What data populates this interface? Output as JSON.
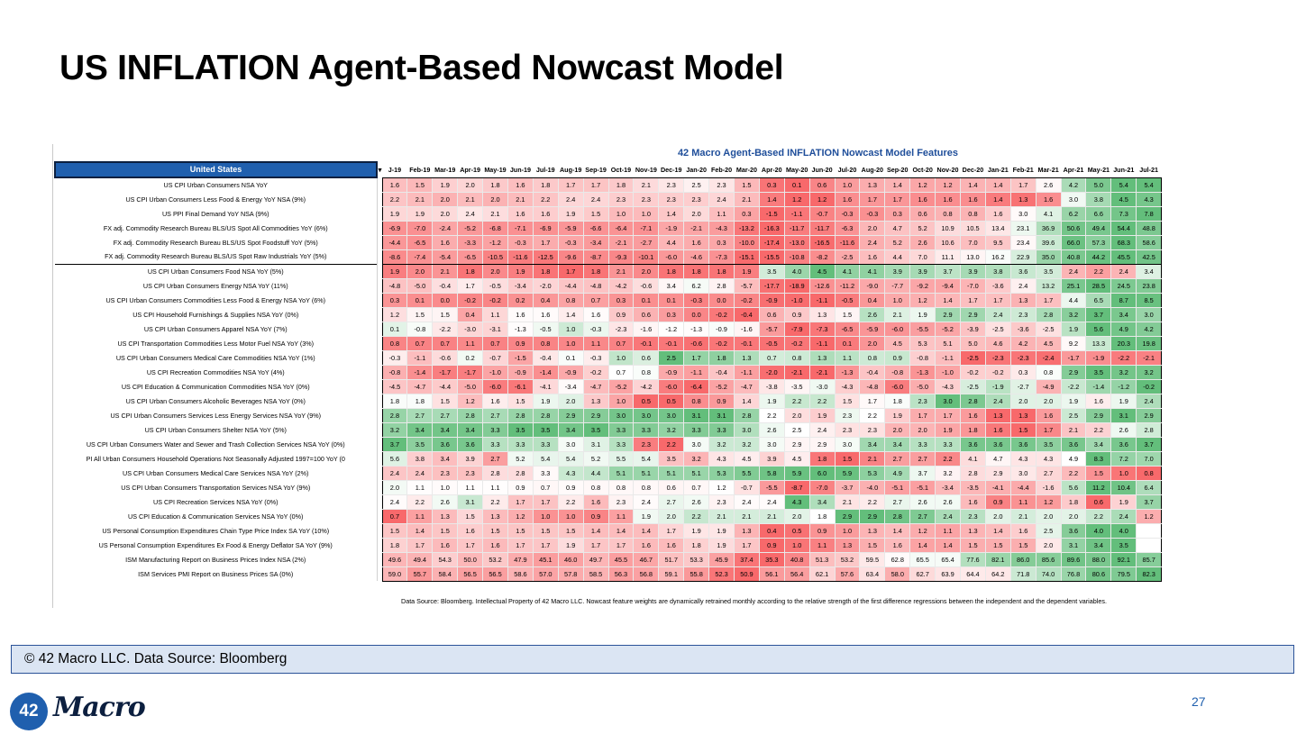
{
  "slide": {
    "title": "US INFLATION Agent-Based Nowcast Model",
    "heatmap_title": "42 Macro Agent-Based INFLATION Nowcast Model Features",
    "footnote": "Data Source: Bloomberg. Intellectual Property of 42 Macro LLC. Nowcast feature weights are dynamically retrained monthly according to the relative strength of the first difference regressions between the independent and the dependent variables.",
    "copyright": "© 42 Macro LLC. Data Source: Bloomberg",
    "logo_number": "42",
    "logo_word": "Macro",
    "page_number": "27"
  },
  "table": {
    "corner_label": "United States",
    "months": [
      "J-19",
      "Feb-19",
      "Mar-19",
      "Apr-19",
      "May-19",
      "Jun-19",
      "Jul-19",
      "Aug-19",
      "Sep-19",
      "Oct-19",
      "Nov-19",
      "Dec-19",
      "Jan-20",
      "Feb-20",
      "Mar-20",
      "Apr-20",
      "May-20",
      "Jun-20",
      "Jul-20",
      "Aug-20",
      "Sep-20",
      "Oct-20",
      "Nov-20",
      "Dec-20",
      "Jan-21",
      "Feb-21",
      "Mar-21",
      "Apr-21",
      "May-21",
      "Jun-21",
      "Jul-21"
    ],
    "rows": [
      {
        "label": "US CPI Urban Consumers NSA YoY",
        "values": [
          "1.6",
          "1.5",
          "1.9",
          "2.0",
          "1.8",
          "1.6",
          "1.8",
          "1.7",
          "1.7",
          "1.8",
          "2.1",
          "2.3",
          "2.5",
          "2.3",
          "1.5",
          "0.3",
          "0.1",
          "0.6",
          "1.0",
          "1.3",
          "1.4",
          "1.2",
          "1.2",
          "1.4",
          "1.4",
          "1.7",
          "2.6",
          "4.2",
          "5.0",
          "5.4",
          "5.4"
        ]
      },
      {
        "label": "US CPI Urban Consumers Less Food & Energy YoY NSA (9%)",
        "values": [
          "2.2",
          "2.1",
          "2.0",
          "2.1",
          "2.0",
          "2.1",
          "2.2",
          "2.4",
          "2.4",
          "2.3",
          "2.3",
          "2.3",
          "2.3",
          "2.4",
          "2.1",
          "1.4",
          "1.2",
          "1.2",
          "1.6",
          "1.7",
          "1.7",
          "1.6",
          "1.6",
          "1.6",
          "1.4",
          "1.3",
          "1.6",
          "3.0",
          "3.8",
          "4.5",
          "4.3"
        ]
      },
      {
        "label": "US PPI Final Demand YoY NSA (9%)",
        "values": [
          "1.9",
          "1.9",
          "2.0",
          "2.4",
          "2.1",
          "1.6",
          "1.6",
          "1.9",
          "1.5",
          "1.0",
          "1.0",
          "1.4",
          "2.0",
          "1.1",
          "0.3",
          "-1.5",
          "-1.1",
          "-0.7",
          "-0.3",
          "-0.3",
          "0.3",
          "0.6",
          "0.8",
          "0.8",
          "1.6",
          "3.0",
          "4.1",
          "6.2",
          "6.6",
          "7.3",
          "7.8"
        ]
      },
      {
        "label": "FX adj. Commodity Research Bureau BLS/US Spot All Commodities YoY (6%)",
        "values": [
          "-6.9",
          "-7.0",
          "-2.4",
          "-5.2",
          "-6.8",
          "-7.1",
          "-6.9",
          "-5.9",
          "-6.6",
          "-6.4",
          "-7.1",
          "-1.9",
          "-2.1",
          "-4.3",
          "-13.2",
          "-16.3",
          "-11.7",
          "-11.7",
          "-6.3",
          "2.0",
          "4.7",
          "5.2",
          "10.9",
          "10.5",
          "13.4",
          "23.1",
          "36.9",
          "50.6",
          "49.4",
          "54.4",
          "48.8"
        ]
      },
      {
        "label": "FX adj. Commodity Research Bureau BLS/US Spot Foodstuff YoY (5%)",
        "values": [
          "-4.4",
          "-6.5",
          "1.6",
          "-3.3",
          "-1.2",
          "-0.3",
          "1.7",
          "-0.3",
          "-3.4",
          "-2.1",
          "-2.7",
          "4.4",
          "1.6",
          "0.3",
          "-10.0",
          "-17.4",
          "-13.0",
          "-16.5",
          "-11.6",
          "2.4",
          "5.2",
          "2.6",
          "10.6",
          "7.0",
          "9.5",
          "23.4",
          "39.6",
          "66.0",
          "57.3",
          "68.3",
          "58.6"
        ]
      },
      {
        "label": "FX adj. Commodity Research Bureau BLS/US Spot Raw Industrials YoY (5%)",
        "values": [
          "-8.6",
          "-7.4",
          "-5.4",
          "-6.5",
          "-10.5",
          "-11.6",
          "-12.5",
          "-9.6",
          "-8.7",
          "-9.3",
          "-10.1",
          "-6.0",
          "-4.6",
          "-7.3",
          "-15.1",
          "-15.5",
          "-10.8",
          "-8.2",
          "-2.5",
          "1.6",
          "4.4",
          "7.0",
          "11.1",
          "13.0",
          "16.2",
          "22.9",
          "35.0",
          "40.8",
          "44.2",
          "45.5",
          "42.5"
        ]
      },
      {
        "label": "US CPI Urban Consumers Food NSA YoY (5%)",
        "values": [
          "1.9",
          "2.0",
          "2.1",
          "1.8",
          "2.0",
          "1.9",
          "1.8",
          "1.7",
          "1.8",
          "2.1",
          "2.0",
          "1.8",
          "1.8",
          "1.8",
          "1.9",
          "3.5",
          "4.0",
          "4.5",
          "4.1",
          "4.1",
          "3.9",
          "3.9",
          "3.7",
          "3.9",
          "3.8",
          "3.6",
          "3.5",
          "2.4",
          "2.2",
          "2.4",
          "3.4"
        ]
      },
      {
        "label": "US CPI Urban Consumers Energy NSA YoY (11%)",
        "values": [
          "-4.8",
          "-5.0",
          "-0.4",
          "1.7",
          "-0.5",
          "-3.4",
          "-2.0",
          "-4.4",
          "-4.8",
          "-4.2",
          "-0.6",
          "3.4",
          "6.2",
          "2.8",
          "-5.7",
          "-17.7",
          "-18.9",
          "-12.6",
          "-11.2",
          "-9.0",
          "-7.7",
          "-9.2",
          "-9.4",
          "-7.0",
          "-3.6",
          "2.4",
          "13.2",
          "25.1",
          "28.5",
          "24.5",
          "23.8"
        ]
      },
      {
        "label": "US CPI Urban Consumers Commodities Less Food & Energy NSA YoY (6%)",
        "values": [
          "0.3",
          "0.1",
          "0.0",
          "-0.2",
          "-0.2",
          "0.2",
          "0.4",
          "0.8",
          "0.7",
          "0.3",
          "0.1",
          "0.1",
          "-0.3",
          "0.0",
          "-0.2",
          "-0.9",
          "-1.0",
          "-1.1",
          "-0.5",
          "0.4",
          "1.0",
          "1.2",
          "1.4",
          "1.7",
          "1.7",
          "1.3",
          "1.7",
          "4.4",
          "6.5",
          "8.7",
          "8.5"
        ]
      },
      {
        "label": "US CPI Household Furnishings & Supplies NSA YoY (0%)",
        "values": [
          "1.2",
          "1.5",
          "1.5",
          "0.4",
          "1.1",
          "1.6",
          "1.6",
          "1.4",
          "1.6",
          "0.9",
          "0.6",
          "0.3",
          "0.0",
          "-0.2",
          "-0.4",
          "0.6",
          "0.9",
          "1.3",
          "1.5",
          "2.6",
          "2.1",
          "1.9",
          "2.9",
          "2.9",
          "2.4",
          "2.3",
          "2.8",
          "3.2",
          "3.7",
          "3.4",
          "3.0"
        ]
      },
      {
        "label": "US CPI Urban Consumers Apparel NSA YoY (7%)",
        "values": [
          "0.1",
          "-0.8",
          "-2.2",
          "-3.0",
          "-3.1",
          "-1.3",
          "-0.5",
          "1.0",
          "-0.3",
          "-2.3",
          "-1.6",
          "-1.2",
          "-1.3",
          "-0.9",
          "-1.6",
          "-5.7",
          "-7.9",
          "-7.3",
          "-6.5",
          "-5.9",
          "-6.0",
          "-5.5",
          "-5.2",
          "-3.9",
          "-2.5",
          "-3.6",
          "-2.5",
          "1.9",
          "5.6",
          "4.9",
          "4.2"
        ]
      },
      {
        "label": "US CPI Transportation Commodities Less Motor Fuel NSA YoY (3%)",
        "values": [
          "0.8",
          "0.7",
          "0.7",
          "1.1",
          "0.7",
          "0.9",
          "0.8",
          "1.0",
          "1.1",
          "0.7",
          "-0.1",
          "-0.1",
          "-0.6",
          "-0.2",
          "-0.1",
          "-0.5",
          "-0.2",
          "-1.1",
          "0.1",
          "2.0",
          "4.5",
          "5.3",
          "5.1",
          "5.0",
          "4.6",
          "4.2",
          "4.5",
          "9.2",
          "13.3",
          "20.3",
          "19.8"
        ]
      },
      {
        "label": "US CPI Urban Consumers Medical Care Commodities NSA YoY (1%)",
        "values": [
          "-0.3",
          "-1.1",
          "-0.6",
          "0.2",
          "-0.7",
          "-1.5",
          "-0.4",
          "0.1",
          "-0.3",
          "1.0",
          "0.6",
          "2.5",
          "1.7",
          "1.8",
          "1.3",
          "0.7",
          "0.8",
          "1.3",
          "1.1",
          "0.8",
          "0.9",
          "-0.8",
          "-1.1",
          "-2.5",
          "-2.3",
          "-2.3",
          "-2.4",
          "-1.7",
          "-1.9",
          "-2.2",
          "-2.1"
        ]
      },
      {
        "label": "US CPI Recreation Commodities NSA YoY (4%)",
        "values": [
          "-0.8",
          "-1.4",
          "-1.7",
          "-1.7",
          "-1.0",
          "-0.9",
          "-1.4",
          "-0.9",
          "-0.2",
          "0.7",
          "0.8",
          "-0.9",
          "-1.1",
          "-0.4",
          "-1.1",
          "-2.0",
          "-2.1",
          "-2.1",
          "-1.3",
          "-0.4",
          "-0.8",
          "-1.3",
          "-1.0",
          "-0.2",
          "-0.2",
          "0.3",
          "0.8",
          "2.9",
          "3.5",
          "3.2",
          "3.2"
        ]
      },
      {
        "label": "US CPI Education & Communication Commodities NSA YoY (0%)",
        "values": [
          "-4.5",
          "-4.7",
          "-4.4",
          "-5.0",
          "-6.0",
          "-6.1",
          "-4.1",
          "-3.4",
          "-4.7",
          "-5.2",
          "-4.2",
          "-6.0",
          "-6.4",
          "-5.2",
          "-4.7",
          "-3.8",
          "-3.5",
          "-3.0",
          "-4.3",
          "-4.8",
          "-6.0",
          "-5.0",
          "-4.3",
          "-2.5",
          "-1.9",
          "-2.7",
          "-4.9",
          "-2.2",
          "-1.4",
          "-1.2",
          "-0.2"
        ]
      },
      {
        "label": "US CPI Urban Consumers Alcoholic Beverages NSA YoY (0%)",
        "values": [
          "1.8",
          "1.8",
          "1.5",
          "1.2",
          "1.6",
          "1.5",
          "1.9",
          "2.0",
          "1.3",
          "1.0",
          "0.5",
          "0.5",
          "0.8",
          "0.9",
          "1.4",
          "1.9",
          "2.2",
          "2.2",
          "1.5",
          "1.7",
          "1.8",
          "2.3",
          "3.0",
          "2.8",
          "2.4",
          "2.0",
          "2.0",
          "1.9",
          "1.6",
          "1.9",
          "2.4"
        ]
      },
      {
        "label": "US CPI Urban Consumers Services Less Energy Services NSA YoY (9%)",
        "values": [
          "2.8",
          "2.7",
          "2.7",
          "2.8",
          "2.7",
          "2.8",
          "2.8",
          "2.9",
          "2.9",
          "3.0",
          "3.0",
          "3.0",
          "3.1",
          "3.1",
          "2.8",
          "2.2",
          "2.0",
          "1.9",
          "2.3",
          "2.2",
          "1.9",
          "1.7",
          "1.7",
          "1.6",
          "1.3",
          "1.3",
          "1.6",
          "2.5",
          "2.9",
          "3.1",
          "2.9"
        ]
      },
      {
        "label": "US CPI Urban Consumers Shelter NSA YoY (5%)",
        "values": [
          "3.2",
          "3.4",
          "3.4",
          "3.4",
          "3.3",
          "3.5",
          "3.5",
          "3.4",
          "3.5",
          "3.3",
          "3.3",
          "3.2",
          "3.3",
          "3.3",
          "3.0",
          "2.6",
          "2.5",
          "2.4",
          "2.3",
          "2.3",
          "2.0",
          "2.0",
          "1.9",
          "1.8",
          "1.6",
          "1.5",
          "1.7",
          "2.1",
          "2.2",
          "2.6",
          "2.8"
        ]
      },
      {
        "label": "US CPI Urban Consumers Water and Sewer and Trash Collection Services NSA YoY (0%)",
        "values": [
          "3.7",
          "3.5",
          "3.6",
          "3.6",
          "3.3",
          "3.3",
          "3.3",
          "3.0",
          "3.1",
          "3.3",
          "2.3",
          "2.2",
          "3.0",
          "3.2",
          "3.2",
          "3.0",
          "2.9",
          "2.9",
          "3.0",
          "3.4",
          "3.4",
          "3.3",
          "3.3",
          "3.6",
          "3.6",
          "3.6",
          "3.5",
          "3.6",
          "3.4",
          "3.6",
          "3.7"
        ]
      },
      {
        "label": "PI All Urban Consumers Household Operations Not Seasonally Adjusted 1997=100 YoY (0",
        "values": [
          "5.6",
          "3.8",
          "3.4",
          "3.9",
          "2.7",
          "5.2",
          "5.4",
          "5.4",
          "5.2",
          "5.5",
          "5.4",
          "3.5",
          "3.2",
          "4.3",
          "4.5",
          "3.9",
          "4.5",
          "1.8",
          "1.5",
          "2.1",
          "2.7",
          "2.7",
          "2.2",
          "4.1",
          "4.7",
          "4.3",
          "4.3",
          "4.9",
          "8.3",
          "7.2",
          "7.0"
        ]
      },
      {
        "label": "US CPI Urban Consumers Medical Care Services NSA YoY (2%)",
        "values": [
          "2.4",
          "2.4",
          "2.3",
          "2.3",
          "2.8",
          "2.8",
          "3.3",
          "4.3",
          "4.4",
          "5.1",
          "5.1",
          "5.1",
          "5.1",
          "5.3",
          "5.5",
          "5.8",
          "5.9",
          "6.0",
          "5.9",
          "5.3",
          "4.9",
          "3.7",
          "3.2",
          "2.8",
          "2.9",
          "3.0",
          "2.7",
          "2.2",
          "1.5",
          "1.0",
          "0.8"
        ]
      },
      {
        "label": "US CPI Urban Consumers Transportation Services NSA YoY (9%)",
        "values": [
          "2.0",
          "1.1",
          "1.0",
          "1.1",
          "1.1",
          "0.9",
          "0.7",
          "0.9",
          "0.8",
          "0.8",
          "0.8",
          "0.6",
          "0.7",
          "1.2",
          "-0.7",
          "-5.5",
          "-8.7",
          "-7.0",
          "-3.7",
          "-4.0",
          "-5.1",
          "-5.1",
          "-3.4",
          "-3.5",
          "-4.1",
          "-4.4",
          "-1.6",
          "5.6",
          "11.2",
          "10.4",
          "6.4"
        ]
      },
      {
        "label": "US CPI Recreation Services NSA YoY (0%)",
        "values": [
          "2.4",
          "2.2",
          "2.6",
          "3.1",
          "2.2",
          "1.7",
          "1.7",
          "2.2",
          "1.6",
          "2.3",
          "2.4",
          "2.7",
          "2.6",
          "2.3",
          "2.4",
          "2.4",
          "4.3",
          "3.4",
          "2.1",
          "2.2",
          "2.7",
          "2.6",
          "2.6",
          "1.6",
          "0.9",
          "1.1",
          "1.2",
          "1.8",
          "0.6",
          "1.9",
          "3.7"
        ]
      },
      {
        "label": "US CPI Education & Communication Services NSA YoY (0%)",
        "values": [
          "0.7",
          "1.1",
          "1.3",
          "1.5",
          "1.3",
          "1.2",
          "1.0",
          "1.0",
          "0.9",
          "1.1",
          "1.9",
          "2.0",
          "2.2",
          "2.1",
          "2.1",
          "2.1",
          "2.0",
          "1.8",
          "2.9",
          "2.9",
          "2.8",
          "2.7",
          "2.4",
          "2.3",
          "2.0",
          "2.1",
          "2.0",
          "2.0",
          "2.2",
          "2.4",
          "1.2"
        ]
      },
      {
        "label": "US Personal Consumption Expenditures Chain Type Price Index SA YoY (10%)",
        "values": [
          "1.5",
          "1.4",
          "1.5",
          "1.6",
          "1.5",
          "1.5",
          "1.5",
          "1.5",
          "1.4",
          "1.4",
          "1.4",
          "1.7",
          "1.9",
          "1.9",
          "1.3",
          "0.4",
          "0.5",
          "0.9",
          "1.0",
          "1.3",
          "1.4",
          "1.2",
          "1.1",
          "1.3",
          "1.4",
          "1.6",
          "2.5",
          "3.6",
          "4.0",
          "4.0",
          ""
        ]
      },
      {
        "label": "US Personal Consumption Expenditures Ex Food & Energy Deflator SA YoY (9%)",
        "values": [
          "1.8",
          "1.7",
          "1.6",
          "1.7",
          "1.6",
          "1.7",
          "1.7",
          "1.9",
          "1.7",
          "1.7",
          "1.6",
          "1.6",
          "1.8",
          "1.9",
          "1.7",
          "0.9",
          "1.0",
          "1.1",
          "1.3",
          "1.5",
          "1.6",
          "1.4",
          "1.4",
          "1.5",
          "1.5",
          "1.5",
          "2.0",
          "3.1",
          "3.4",
          "3.5",
          ""
        ]
      },
      {
        "label": "ISM Manufacturing Report on Business Prices Index NSA (2%)",
        "values": [
          "49.6",
          "49.4",
          "54.3",
          "50.0",
          "53.2",
          "47.9",
          "45.1",
          "46.0",
          "49.7",
          "45.5",
          "46.7",
          "51.7",
          "53.3",
          "45.9",
          "37.4",
          "35.3",
          "40.8",
          "51.3",
          "53.2",
          "59.5",
          "62.8",
          "65.5",
          "65.4",
          "77.6",
          "82.1",
          "86.0",
          "85.6",
          "89.6",
          "88.0",
          "92.1",
          "85.7"
        ]
      },
      {
        "label": "ISM Services PMI Report on Business Prices SA (0%)",
        "values": [
          "59.0",
          "55.7",
          "58.4",
          "56.5",
          "56.5",
          "58.6",
          "57.0",
          "57.8",
          "58.5",
          "56.3",
          "56.8",
          "59.1",
          "55.8",
          "52.3",
          "50.9",
          "56.1",
          "56.4",
          "62.1",
          "57.6",
          "63.4",
          "58.0",
          "62.7",
          "63.9",
          "64.4",
          "64.2",
          "71.8",
          "74.0",
          "76.8",
          "80.6",
          "79.5",
          "82.3"
        ]
      }
    ]
  },
  "colors": {
    "accent_blue": "#1f5fae",
    "heat_low": "#f8696b",
    "heat_mid": "#ffffff",
    "heat_high": "#63be7b",
    "copyright_bg": "#dbe5f3"
  }
}
